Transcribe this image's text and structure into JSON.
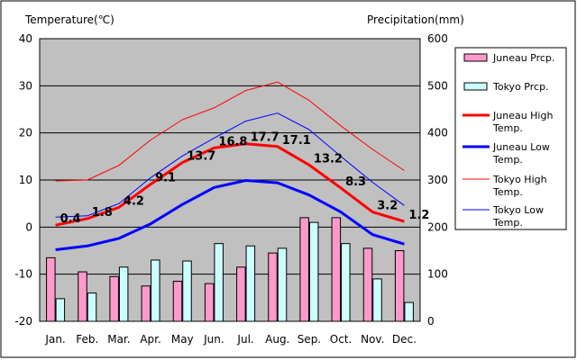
{
  "chart_data": {
    "type": "bar",
    "title": "",
    "categories": [
      "Jan.",
      "Feb.",
      "Mar.",
      "Apr.",
      "May",
      "Jun.",
      "Jul.",
      "Aug.",
      "Sep.",
      "Oct.",
      "Nov.",
      "Dec."
    ],
    "left_axis": {
      "label": "Temperature(℃)",
      "min": -20,
      "max": 40,
      "ticks": [
        40,
        30,
        20,
        10,
        0,
        -10,
        -20
      ]
    },
    "right_axis": {
      "label": "Precipitation(mm)",
      "min": 0,
      "max": 600,
      "ticks": [
        600,
        500,
        400,
        300,
        200,
        100,
        0
      ]
    },
    "grid": true,
    "legend_position": "right",
    "series": [
      {
        "name": "Juneau Prcp.",
        "type": "bar",
        "axis": "right",
        "color": "#ff99cc",
        "values": [
          135,
          105,
          95,
          75,
          85,
          80,
          115,
          145,
          220,
          220,
          155,
          150
        ]
      },
      {
        "name": "Tokyo Prcp.",
        "type": "bar",
        "axis": "right",
        "color": "#ccffff",
        "values": [
          48,
          60,
          115,
          130,
          128,
          165,
          160,
          155,
          210,
          165,
          90,
          40
        ]
      },
      {
        "name": "Juneau High Temp.",
        "type": "line",
        "axis": "left",
        "color": "#ff0000",
        "width": 3,
        "labels": true,
        "values": [
          0.4,
          1.8,
          4.2,
          9.1,
          13.7,
          16.8,
          17.7,
          17.1,
          13.2,
          8.3,
          3.2,
          1.2
        ]
      },
      {
        "name": "Juneau Low Temp.",
        "type": "line",
        "axis": "left",
        "color": "#0000ff",
        "width": 3,
        "values": [
          -4.8,
          -4.0,
          -2.4,
          0.7,
          4.8,
          8.4,
          9.9,
          9.4,
          6.8,
          3.2,
          -1.6,
          -3.6
        ]
      },
      {
        "name": "Tokyo High Temp.",
        "type": "line",
        "axis": "left",
        "color": "#ff0000",
        "width": 1,
        "values": [
          9.8,
          10.0,
          13.1,
          18.5,
          22.8,
          25.3,
          29.0,
          30.8,
          26.9,
          21.5,
          16.5,
          12.0
        ]
      },
      {
        "name": "Tokyo Low Temp.",
        "type": "line",
        "axis": "left",
        "color": "#0000ff",
        "width": 1,
        "values": [
          2.1,
          2.4,
          5.0,
          10.5,
          15.1,
          18.9,
          22.5,
          24.2,
          20.7,
          15.0,
          9.5,
          4.6
        ]
      }
    ]
  }
}
